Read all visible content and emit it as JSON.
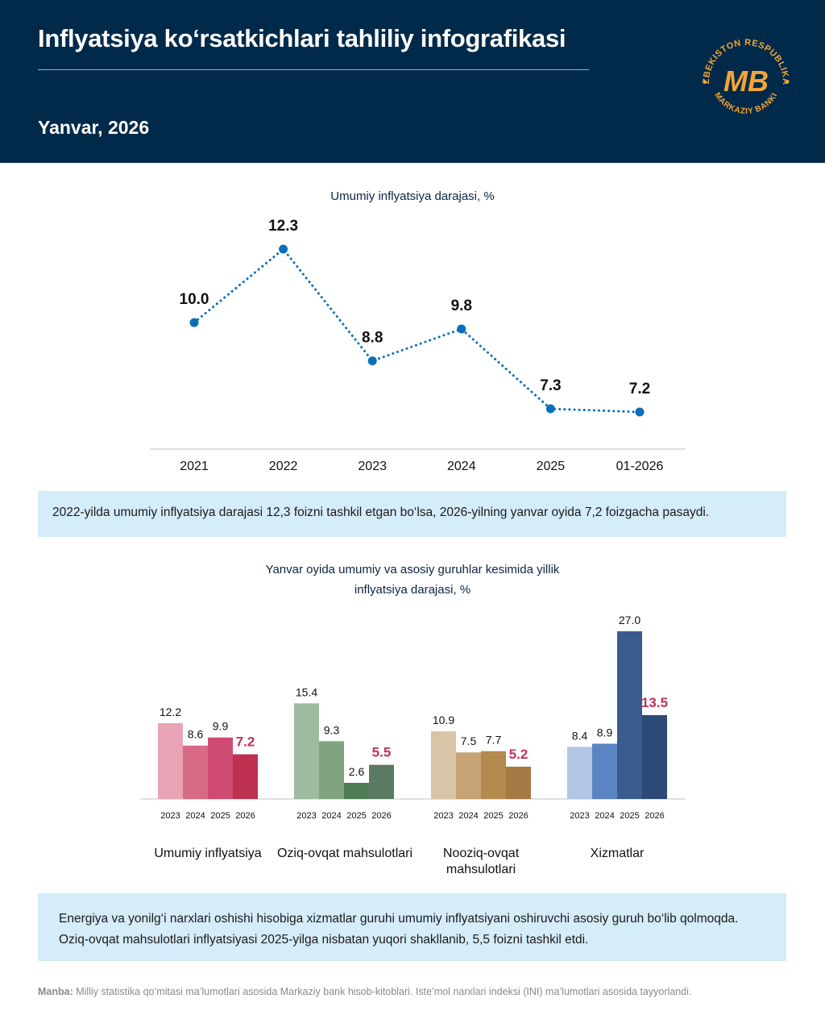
{
  "header": {
    "title": "Inflyatsiya ko‘rsatkichlari tahliliy infografikasi",
    "period": "Yanvar, 2026",
    "logo": {
      "monogram": "MB",
      "ring_text_top": "O‘ZBEKISTON RESPUBLIKASI",
      "ring_text_bottom": "MARKAZIY BANKI"
    },
    "background_color": "#012a4a",
    "accent_color": "#f4a536"
  },
  "chart_data": [
    {
      "type": "line",
      "title": "Umumiy inflyatsiya darajasi, %",
      "categories": [
        "2021",
        "2022",
        "2023",
        "2024",
        "2025",
        "01-2026"
      ],
      "series": [
        {
          "values": [
            10.0,
            12.3,
            8.8,
            9.8,
            7.3,
            7.2
          ],
          "color": "#0a6fb8"
        }
      ],
      "labels": [
        "10.0",
        "12.3",
        "8.8",
        "9.8",
        "7.3",
        "7.2"
      ],
      "line_style": "dotted",
      "grid": false
    },
    {
      "type": "bar",
      "title": "Yanvar oyida umumiy va asosiy guruhlar kesimida yillik inflyatsiya darajasi, %",
      "years": [
        "2023",
        "2024",
        "2025",
        "2026"
      ],
      "groups": [
        {
          "name": "Umumiy inflyatsiya",
          "values": [
            12.2,
            8.6,
            9.9,
            7.2
          ],
          "labels": [
            "12.2",
            "8.6",
            "9.9",
            "7.2"
          ],
          "colors": [
            "#e8a3b5",
            "#d96a85",
            "#cf4b72",
            "#be3050"
          ],
          "highlight_color": "#c0325a"
        },
        {
          "name": "Oziq-ovqat mahsulotlari",
          "values": [
            15.4,
            9.3,
            2.6,
            5.5
          ],
          "labels": [
            "15.4",
            "9.3",
            "2.6",
            "5.5"
          ],
          "colors": [
            "#9fbb9f",
            "#7fa47f",
            "#4e7c55",
            "#5b7a62"
          ],
          "highlight_color": "#c0325a"
        },
        {
          "name": "Nooziq-ovqat mahsulotlari",
          "values": [
            10.9,
            7.5,
            7.7,
            5.2
          ],
          "labels": [
            "10.9",
            "7.5",
            "7.7",
            "5.2"
          ],
          "colors": [
            "#d8c4a6",
            "#c6a275",
            "#b48a4f",
            "#a57a45"
          ],
          "highlight_color": "#c0325a"
        },
        {
          "name": "Xizmatlar",
          "values": [
            8.4,
            8.9,
            27.0,
            13.5
          ],
          "labels": [
            "8.4",
            "8.9",
            "27.0",
            "13.5"
          ],
          "colors": [
            "#b3c6e4",
            "#5a85c2",
            "#3a5b8e",
            "#2c4a75"
          ],
          "highlight_color": "#c0325a"
        }
      ],
      "grid": false
    }
  ],
  "notes": {
    "note1": "2022-yilda umumiy inflyatsiya darajasi 12,3 foizni tashkil etgan bo‘lsa, 2026-yilning yanvar oyida 7,2 foizgacha pasaydi.",
    "note2": "Energiya va yonilg‘i narxlari oshishi hisobiga xizmatlar guruhi umumiy inflyatsiyani oshiruvchi asosiy guruh bo‘lib qolmoqda. Oziq-ovqat mahsulotlari inflyatsiyasi 2025-yilga nisbatan yuqori shakllanib, 5,5 foizni tashkil etdi."
  },
  "source": {
    "label": "Manba:",
    "text": " Milliy statistika qo‘mitasi ma’lumotlari asosida Markaziy bank hisob-kitoblari. Iste’mol narxlari indeksi (INI) ma’lumotlari asosida tayyorlandi."
  }
}
